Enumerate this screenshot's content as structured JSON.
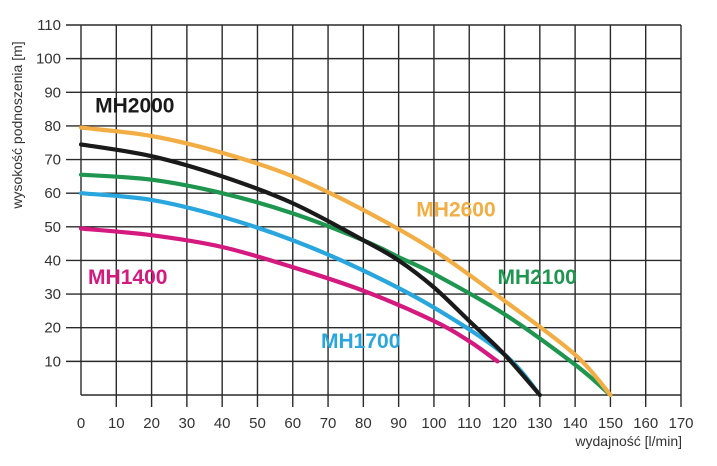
{
  "chart_data": {
    "type": "line",
    "title": "",
    "xlabel": "wydajność [l/min]",
    "ylabel": "wysokość podnoszenia [m]",
    "xlim": [
      0,
      170
    ],
    "ylim": [
      0,
      110
    ],
    "grid": true,
    "x_ticks": [
      0,
      10,
      20,
      30,
      40,
      50,
      60,
      70,
      80,
      90,
      100,
      110,
      120,
      130,
      140,
      150,
      160,
      170
    ],
    "y_ticks": [
      10,
      20,
      30,
      40,
      50,
      60,
      70,
      80,
      90,
      100,
      110
    ],
    "series": [
      {
        "name": "MH2600",
        "color": "#F2AE44",
        "points": [
          [
            0,
            79.5
          ],
          [
            20,
            77
          ],
          [
            40,
            72
          ],
          [
            60,
            65
          ],
          [
            80,
            55
          ],
          [
            100,
            43
          ],
          [
            120,
            28
          ],
          [
            140,
            12
          ],
          [
            150,
            0
          ]
        ]
      },
      {
        "name": "MH2000",
        "color": "#1A1A1A",
        "points": [
          [
            0,
            74.5
          ],
          [
            20,
            71
          ],
          [
            40,
            65
          ],
          [
            60,
            57
          ],
          [
            80,
            46
          ],
          [
            90,
            40
          ],
          [
            100,
            32
          ],
          [
            110,
            22
          ],
          [
            120,
            12
          ],
          [
            130,
            0
          ]
        ]
      },
      {
        "name": "MH2100",
        "color": "#1E9650",
        "points": [
          [
            0,
            65.5
          ],
          [
            20,
            64
          ],
          [
            40,
            60
          ],
          [
            60,
            54
          ],
          [
            80,
            46
          ],
          [
            90,
            41
          ],
          [
            100,
            36
          ],
          [
            120,
            24
          ],
          [
            140,
            9
          ],
          [
            150,
            0
          ]
        ]
      },
      {
        "name": "MH1700",
        "color": "#2AA6DE",
        "points": [
          [
            0,
            60
          ],
          [
            20,
            58
          ],
          [
            40,
            53
          ],
          [
            60,
            46
          ],
          [
            80,
            37
          ],
          [
            100,
            26
          ],
          [
            120,
            12
          ],
          [
            130,
            0
          ]
        ]
      },
      {
        "name": "MH1400",
        "color": "#D4197F",
        "points": [
          [
            0,
            49.5
          ],
          [
            20,
            47.5
          ],
          [
            40,
            44
          ],
          [
            60,
            38
          ],
          [
            80,
            31
          ],
          [
            100,
            22
          ],
          [
            110,
            16
          ],
          [
            118,
            10
          ]
        ]
      }
    ],
    "annotations": [
      {
        "text": "MH2000",
        "series": "MH2000",
        "x": 4,
        "y": 84
      },
      {
        "text": "MH2600",
        "series": "MH2600",
        "x": 95,
        "y": 53
      },
      {
        "text": "MH2100",
        "series": "MH2100",
        "x": 118,
        "y": 33
      },
      {
        "text": "MH1400",
        "series": "MH1400",
        "x": 2,
        "y": 33
      },
      {
        "text": "MH1700",
        "series": "MH1700",
        "x": 68,
        "y": 14
      }
    ]
  }
}
